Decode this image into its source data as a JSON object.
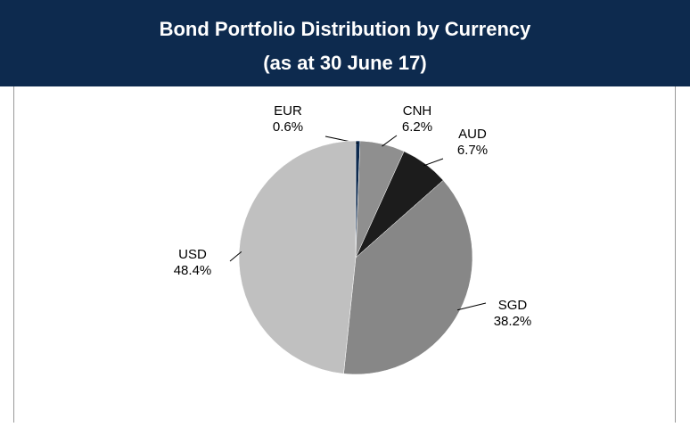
{
  "chart_data": {
    "type": "pie",
    "title": "Bond Portfolio Distribution by Currency",
    "subtitle": "(as at 30 June 17)",
    "categories": [
      "EUR",
      "CNH",
      "AUD",
      "SGD",
      "USD"
    ],
    "values": [
      0.6,
      6.2,
      6.7,
      38.2,
      48.4
    ],
    "value_labels": [
      "0.6%",
      "6.2%",
      "6.7%",
      "38.2%",
      "48.4%"
    ],
    "colors": [
      "#0d2a4e",
      "#8f8f8f",
      "#1c1c1c",
      "#878787",
      "#c0c0c0"
    ]
  }
}
